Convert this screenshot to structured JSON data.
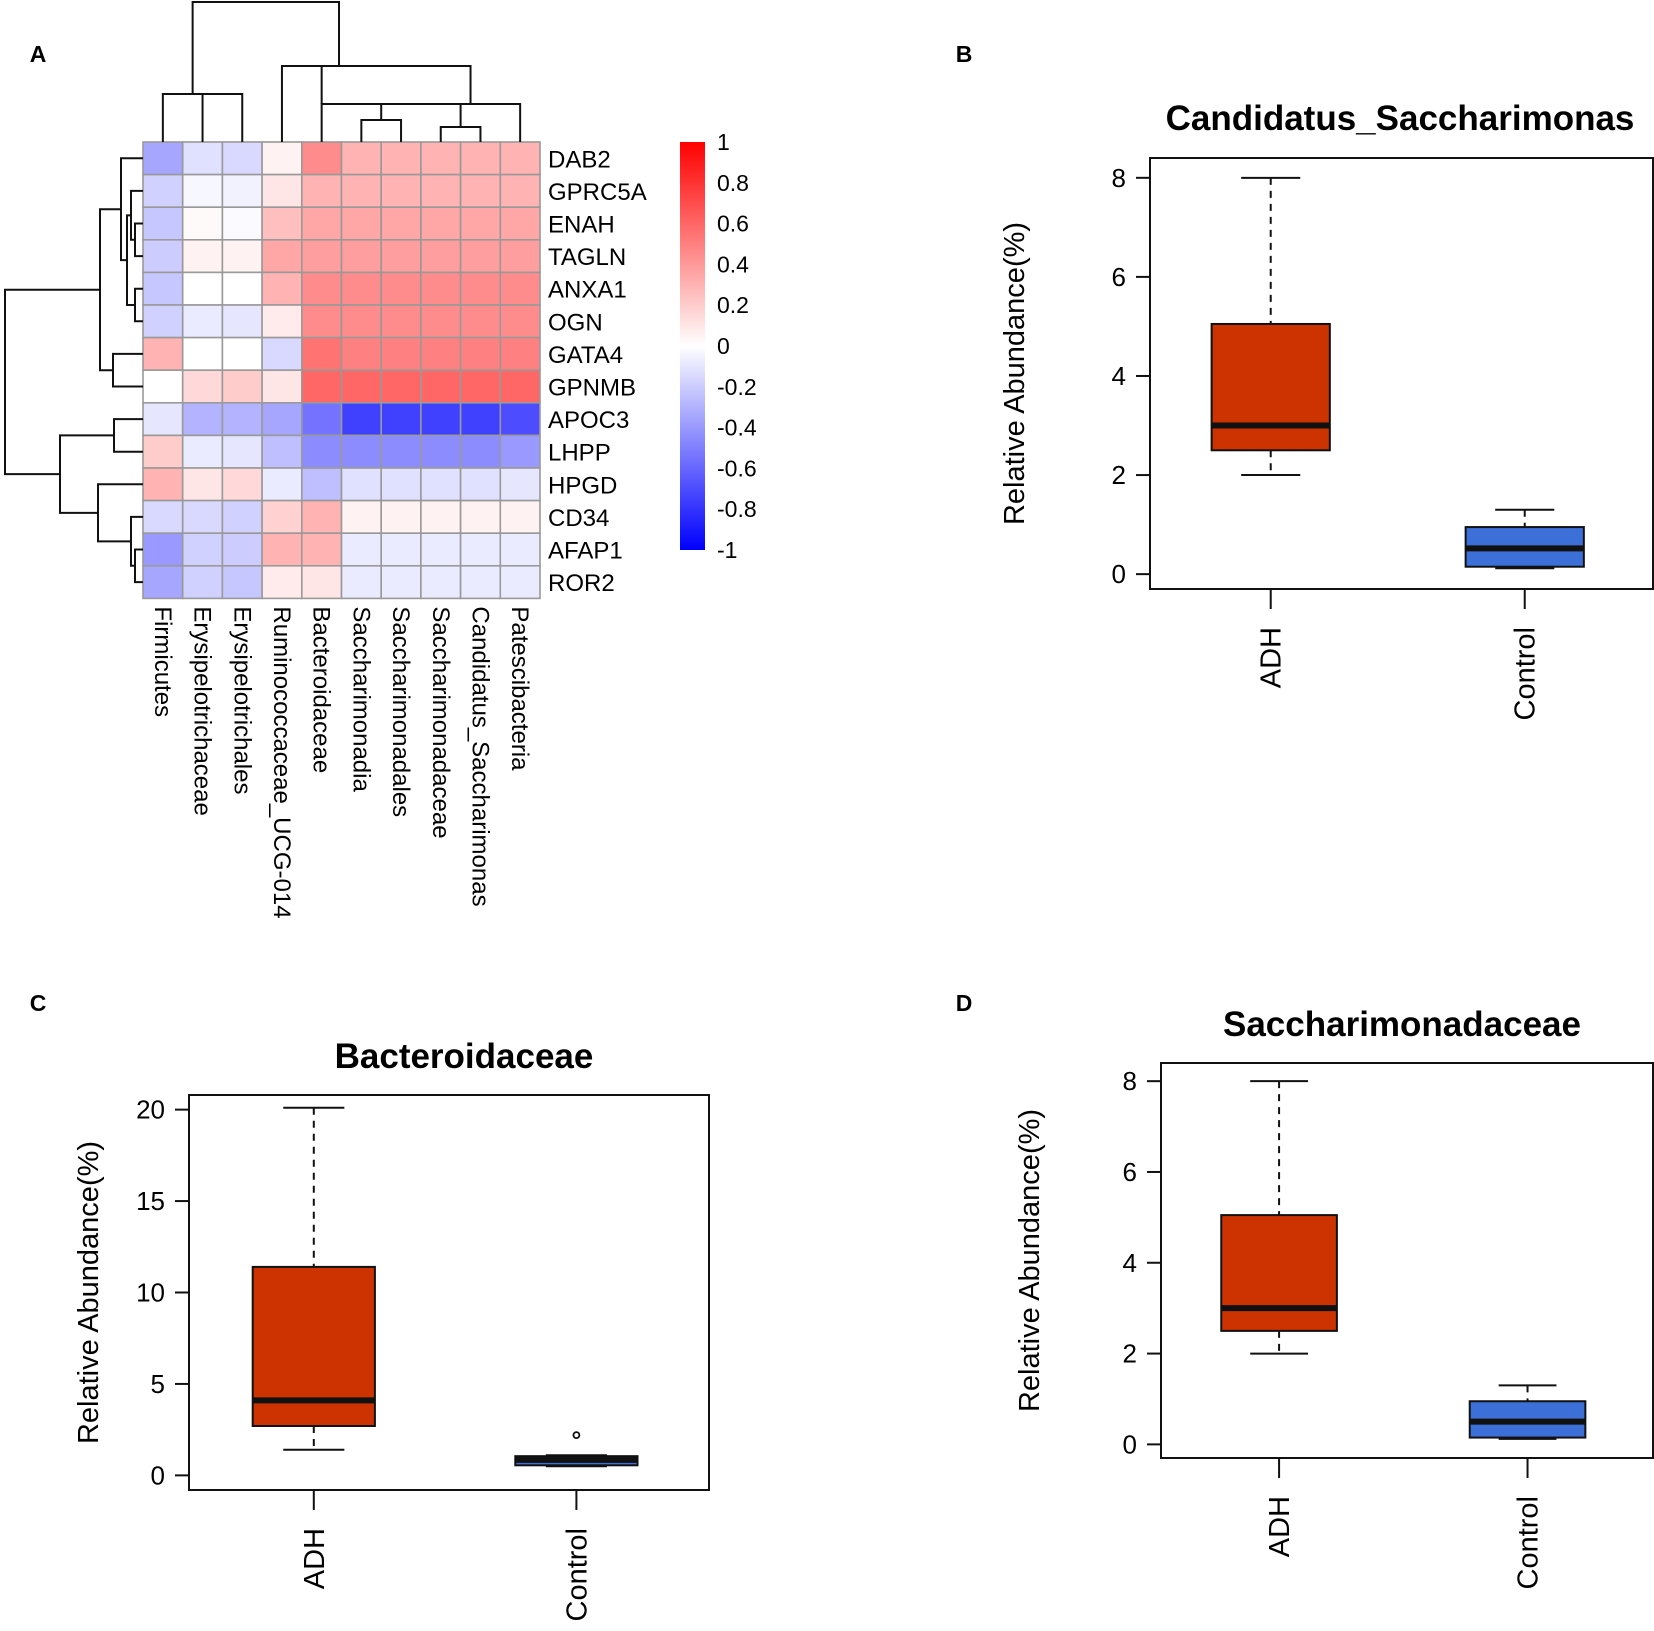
{
  "panel_labels": [
    "A",
    "B",
    "C",
    "D"
  ],
  "colors": {
    "heat_pos": "#ff0000",
    "heat_neg": "#0000ff",
    "heat_mid": "#ffffff",
    "heat_grid": "#999999",
    "adh_box": "#cc3300",
    "control_box": "#3d6fd9",
    "median": "#111111",
    "dendrogram": "#111111"
  },
  "chart_data": [
    {
      "type": "heatmap",
      "panel": "A",
      "rows": [
        "DAB2",
        "GPRC5A",
        "ENAH",
        "TAGLN",
        "ANXA1",
        "OGN",
        "GATA4",
        "GPNMB",
        "APOC3",
        "LHPP",
        "HPGD",
        "CD34",
        "AFAP1",
        "ROR2"
      ],
      "columns": [
        "Firmicutes",
        "Erysipelotrichaceae",
        "Erysipelotrichales",
        "Ruminococcaceae_UCG-014",
        "Bacteroidaceae",
        "Saccharimonadia",
        "Saccharimonadales",
        "Saccharimonadaceae",
        "Candidatus_Saccharimonas",
        "Patescibacteria"
      ],
      "values": [
        [
          -0.35,
          -0.12,
          -0.15,
          0.05,
          0.45,
          0.3,
          0.3,
          0.3,
          0.3,
          0.3
        ],
        [
          -0.18,
          -0.03,
          -0.05,
          0.1,
          0.3,
          0.3,
          0.3,
          0.3,
          0.3,
          0.3
        ],
        [
          -0.22,
          0.02,
          -0.02,
          0.25,
          0.35,
          0.35,
          0.35,
          0.35,
          0.35,
          0.35
        ],
        [
          -0.2,
          0.05,
          0.05,
          0.35,
          0.38,
          0.38,
          0.38,
          0.38,
          0.38,
          0.38
        ],
        [
          -0.22,
          0.0,
          0.0,
          0.3,
          0.45,
          0.45,
          0.45,
          0.45,
          0.45,
          0.45
        ],
        [
          -0.18,
          -0.08,
          -0.1,
          0.08,
          0.45,
          0.45,
          0.45,
          0.45,
          0.45,
          0.45
        ],
        [
          0.3,
          0.0,
          0.0,
          -0.15,
          0.55,
          0.5,
          0.5,
          0.5,
          0.5,
          0.5
        ],
        [
          0.0,
          0.15,
          0.2,
          0.1,
          0.6,
          0.6,
          0.6,
          0.6,
          0.6,
          0.6
        ],
        [
          -0.1,
          -0.3,
          -0.3,
          -0.35,
          -0.55,
          -0.75,
          -0.75,
          -0.75,
          -0.75,
          -0.7
        ],
        [
          0.2,
          -0.08,
          -0.1,
          -0.25,
          -0.45,
          -0.45,
          -0.45,
          -0.45,
          -0.45,
          -0.4
        ],
        [
          0.3,
          0.1,
          0.15,
          -0.08,
          -0.25,
          -0.12,
          -0.12,
          -0.12,
          -0.12,
          -0.1
        ],
        [
          -0.15,
          -0.15,
          -0.18,
          0.18,
          0.3,
          0.05,
          0.05,
          0.05,
          0.05,
          0.05
        ],
        [
          -0.4,
          -0.18,
          -0.2,
          0.3,
          0.3,
          -0.08,
          -0.08,
          -0.08,
          -0.08,
          -0.08
        ],
        [
          -0.35,
          -0.18,
          -0.22,
          0.08,
          0.1,
          -0.08,
          -0.08,
          -0.08,
          -0.08,
          -0.08
        ]
      ],
      "color_range": [
        -1,
        1
      ],
      "colorbar_ticks": [
        "1",
        "0.8",
        "0.6",
        "0.4",
        "0.2",
        "0",
        "-0.2",
        "-0.4",
        "-0.6",
        "-0.8",
        "-1"
      ]
    },
    {
      "type": "box",
      "panel": "B",
      "title": "Candidatus_Saccharimonas",
      "ylabel": "Relative Abundance(%)",
      "ylim": [
        -0.3,
        8.4
      ],
      "yticks": [
        "0",
        "2",
        "4",
        "6",
        "8"
      ],
      "categories": [
        "ADH",
        "Control"
      ],
      "boxes": [
        {
          "name": "ADH",
          "min": 2.0,
          "q1": 2.5,
          "median": 3.0,
          "q3": 5.05,
          "max": 8.0,
          "outliers": []
        },
        {
          "name": "Control",
          "min": 0.12,
          "q1": 0.15,
          "median": 0.52,
          "q3": 0.95,
          "max": 1.3,
          "outliers": []
        }
      ]
    },
    {
      "type": "box",
      "panel": "C",
      "title": "Bacteroidaceae",
      "ylabel": "Relative Abundance(%)",
      "ylim": [
        -0.8,
        20.8
      ],
      "yticks": [
        "0",
        "5",
        "10",
        "15",
        "20"
      ],
      "categories": [
        "ADH",
        "Control"
      ],
      "boxes": [
        {
          "name": "ADH",
          "min": 1.4,
          "q1": 2.7,
          "median": 4.1,
          "q3": 11.4,
          "max": 20.1,
          "outliers": []
        },
        {
          "name": "Control",
          "min": 0.5,
          "q1": 0.55,
          "median": 0.85,
          "q3": 1.05,
          "max": 1.1,
          "outliers": [
            2.2
          ]
        }
      ]
    },
    {
      "type": "box",
      "panel": "D",
      "title": "Saccharimonadaceae",
      "ylabel": "Relative Abundance(%)",
      "ylim": [
        -0.3,
        8.4
      ],
      "yticks": [
        "0",
        "2",
        "4",
        "6",
        "8"
      ],
      "categories": [
        "ADH",
        "Control"
      ],
      "boxes": [
        {
          "name": "ADH",
          "min": 2.0,
          "q1": 2.5,
          "median": 3.0,
          "q3": 5.05,
          "max": 8.0,
          "outliers": []
        },
        {
          "name": "Control",
          "min": 0.12,
          "q1": 0.15,
          "median": 0.5,
          "q3": 0.95,
          "max": 1.3,
          "outliers": []
        }
      ]
    }
  ]
}
